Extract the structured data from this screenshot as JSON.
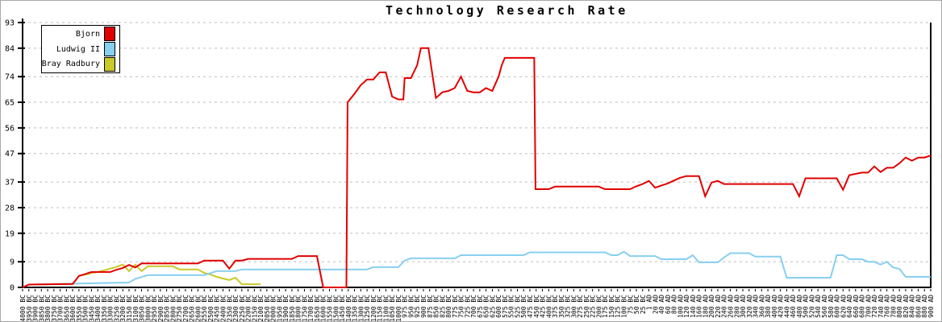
{
  "chart_data": {
    "type": "line",
    "title": "Technology Research Rate",
    "xlabel": "",
    "ylabel": "",
    "ylim": [
      0,
      93
    ],
    "y_ticks": [
      0,
      9,
      19,
      28,
      37,
      47,
      56,
      65,
      74,
      84,
      93
    ],
    "grid": "horizontal-dashed",
    "grid_color": "#bcbcbc",
    "legend_position": "top-left",
    "x_tick_labels": [
      "4000 BC",
      "3950 BC",
      "3900 BC",
      "3850 BC",
      "3800 BC",
      "3750 BC",
      "3700 BC",
      "3650 BC",
      "3600 BC",
      "3550 BC",
      "3500 BC",
      "3450 BC",
      "3400 BC",
      "3350 BC",
      "3300 BC",
      "3250 BC",
      "3200 BC",
      "3150 BC",
      "3100 BC",
      "3050 BC",
      "3000 BC",
      "2950 BC",
      "2900 BC",
      "2850 BC",
      "2800 BC",
      "2750 BC",
      "2700 BC",
      "2650 BC",
      "2600 BC",
      "2550 BC",
      "2500 BC",
      "2450 BC",
      "2400 BC",
      "2350 BC",
      "2300 BC",
      "2250 BC",
      "2200 BC",
      "2150 BC",
      "2100 BC",
      "2050 BC",
      "2000 BC",
      "1950 BC",
      "1900 BC",
      "1850 BC",
      "1800 BC",
      "1750 BC",
      "1700 BC",
      "1650 BC",
      "1600 BC",
      "1550 BC",
      "1500 BC",
      "1450 BC",
      "1400 BC",
      "1350 BC",
      "1300 BC",
      "1250 BC",
      "1200 BC",
      "1150 BC",
      "1100 BC",
      "1050 BC",
      "1000 BC",
      "975 BC",
      "950 BC",
      "925 BC",
      "900 BC",
      "875 BC",
      "850 BC",
      "825 BC",
      "800 BC",
      "775 BC",
      "750 BC",
      "725 BC",
      "700 BC",
      "675 BC",
      "650 BC",
      "625 BC",
      "600 BC",
      "575 BC",
      "550 BC",
      "525 BC",
      "500 BC",
      "475 BC",
      "450 BC",
      "425 BC",
      "400 BC",
      "375 BC",
      "350 BC",
      "325 BC",
      "300 BC",
      "275 BC",
      "250 BC",
      "225 BC",
      "200 BC",
      "175 BC",
      "150 BC",
      "125 BC",
      "100 BC",
      "75 BC",
      "50 BC",
      "25 BC",
      "1 AD",
      "20 AD",
      "40 AD",
      "60 AD",
      "80 AD",
      "100 AD",
      "120 AD",
      "140 AD",
      "160 AD",
      "180 AD",
      "200 AD",
      "220 AD",
      "240 AD",
      "260 AD",
      "280 AD",
      "300 AD",
      "320 AD",
      "340 AD",
      "360 AD",
      "380 AD",
      "400 AD",
      "420 AD",
      "440 AD",
      "460 AD",
      "480 AD",
      "500 AD",
      "520 AD",
      "540 AD",
      "560 AD",
      "580 AD",
      "600 AD",
      "620 AD",
      "640 AD",
      "660 AD",
      "680 AD",
      "700 AD",
      "720 AD",
      "740 AD",
      "760 AD",
      "780 AD",
      "800 AD",
      "820 AD",
      "840 AD",
      "860 AD",
      "880 AD",
      "900 AD"
    ],
    "series": [
      {
        "name": "Bjorn",
        "color": "#e10000",
        "points": [
          [
            0,
            0
          ],
          [
            1,
            1
          ],
          [
            8,
            1.2
          ],
          [
            9,
            4
          ],
          [
            10,
            4.7
          ],
          [
            11,
            5.4
          ],
          [
            14,
            5.4
          ],
          [
            15,
            6.2
          ],
          [
            16,
            6.8
          ],
          [
            17,
            7.9
          ],
          [
            18,
            7
          ],
          [
            19,
            8.4
          ],
          [
            28,
            8.4
          ],
          [
            29,
            9.4
          ],
          [
            32,
            9.4
          ],
          [
            33,
            6.6
          ],
          [
            34,
            9.4
          ],
          [
            35,
            9.4
          ],
          [
            36,
            10
          ],
          [
            43,
            10
          ],
          [
            44,
            11
          ],
          [
            47,
            11
          ],
          [
            48,
            0
          ],
          [
            51.7,
            0
          ],
          [
            51.9,
            65
          ],
          [
            53,
            68
          ],
          [
            54,
            71
          ],
          [
            55,
            73
          ],
          [
            56,
            73
          ],
          [
            57,
            75.5
          ],
          [
            58,
            75.5
          ],
          [
            59,
            67
          ],
          [
            60,
            66
          ],
          [
            60.8,
            66
          ],
          [
            61,
            73.5
          ],
          [
            62,
            73.5
          ],
          [
            63,
            78
          ],
          [
            63.6,
            84
          ],
          [
            64.8,
            84
          ],
          [
            66,
            66.5
          ],
          [
            67,
            68.5
          ],
          [
            68,
            69
          ],
          [
            69,
            70
          ],
          [
            70,
            74
          ],
          [
            71,
            69
          ],
          [
            72,
            68.5
          ],
          [
            73,
            68.5
          ],
          [
            74,
            70
          ],
          [
            75,
            69
          ],
          [
            76,
            74
          ],
          [
            76.5,
            78
          ],
          [
            77,
            80.6
          ],
          [
            81.7,
            80.6
          ],
          [
            81.9,
            34.5
          ],
          [
            84,
            34.5
          ],
          [
            85,
            35.4
          ],
          [
            92,
            35.4
          ],
          [
            93,
            34.5
          ],
          [
            97,
            34.5
          ],
          [
            98,
            35.5
          ],
          [
            99,
            36.3
          ],
          [
            100,
            37.4
          ],
          [
            101,
            35
          ],
          [
            102,
            35.8
          ],
          [
            103,
            36.5
          ],
          [
            104,
            37.5
          ],
          [
            105,
            38.5
          ],
          [
            106,
            39.1
          ],
          [
            108,
            39.1
          ],
          [
            109,
            32
          ],
          [
            110,
            36.8
          ],
          [
            111,
            37.4
          ],
          [
            112,
            36.3
          ],
          [
            123,
            36.3
          ],
          [
            124,
            32
          ],
          [
            125,
            38.3
          ],
          [
            130,
            38.3
          ],
          [
            131,
            34.3
          ],
          [
            132,
            39.4
          ],
          [
            134,
            40.3
          ],
          [
            135,
            40.3
          ],
          [
            136,
            42.5
          ],
          [
            137,
            40.5
          ],
          [
            138,
            42
          ],
          [
            139,
            42
          ],
          [
            140,
            43.6
          ],
          [
            141,
            45.6
          ],
          [
            142,
            44.5
          ],
          [
            143,
            45.6
          ],
          [
            144,
            45.6
          ],
          [
            145,
            46.3
          ]
        ]
      },
      {
        "name": "Ludwig II",
        "color": "#87cfef",
        "points": [
          [
            0,
            0
          ],
          [
            1,
            1
          ],
          [
            17,
            1.7
          ],
          [
            18,
            3
          ],
          [
            20,
            4.3
          ],
          [
            29,
            4.3
          ],
          [
            31,
            5.7
          ],
          [
            34,
            5.7
          ],
          [
            35,
            6.3
          ],
          [
            55,
            6.3
          ],
          [
            56,
            7.1
          ],
          [
            60,
            7.1
          ],
          [
            61,
            9.4
          ],
          [
            62,
            10.2
          ],
          [
            69,
            10.2
          ],
          [
            70,
            11.3
          ],
          [
            80,
            11.3
          ],
          [
            81,
            12.3
          ],
          [
            93,
            12.3
          ],
          [
            94,
            11.3
          ],
          [
            95,
            11.3
          ],
          [
            96,
            12.5
          ],
          [
            97,
            11
          ],
          [
            101,
            11
          ],
          [
            102,
            9.9
          ],
          [
            106,
            9.9
          ],
          [
            107,
            11.3
          ],
          [
            108,
            8.8
          ],
          [
            111,
            8.8
          ],
          [
            112,
            10.5
          ],
          [
            113,
            12
          ],
          [
            116,
            12
          ],
          [
            117,
            10.8
          ],
          [
            121,
            10.8
          ],
          [
            122,
            3.4
          ],
          [
            129,
            3.4
          ],
          [
            130,
            11.3
          ],
          [
            131,
            11.3
          ],
          [
            132,
            9.9
          ],
          [
            134,
            9.9
          ],
          [
            135,
            9
          ],
          [
            136,
            9
          ],
          [
            137,
            8
          ],
          [
            138,
            9
          ],
          [
            139,
            7
          ],
          [
            140,
            6.5
          ],
          [
            141,
            3.7
          ],
          [
            145,
            3.7
          ]
        ]
      },
      {
        "name": "Bray Radbury",
        "color": "#c9c929",
        "points": [
          [
            0,
            0
          ],
          [
            1,
            1
          ],
          [
            8,
            1.2
          ],
          [
            9,
            4
          ],
          [
            10,
            4.5
          ],
          [
            11,
            5
          ],
          [
            12,
            5.4
          ],
          [
            13,
            6
          ],
          [
            14,
            6.6
          ],
          [
            15,
            7.2
          ],
          [
            16,
            8
          ],
          [
            17,
            5.7
          ],
          [
            18,
            8
          ],
          [
            19,
            5.7
          ],
          [
            20,
            7.4
          ],
          [
            24,
            7.4
          ],
          [
            25,
            6.3
          ],
          [
            28,
            6.3
          ],
          [
            29,
            5.1
          ],
          [
            30,
            4.5
          ],
          [
            31,
            3.7
          ],
          [
            32,
            3.1
          ],
          [
            33,
            2.6
          ],
          [
            34,
            3.4
          ],
          [
            35,
            1.1
          ],
          [
            38,
            1.1
          ]
        ]
      }
    ]
  }
}
